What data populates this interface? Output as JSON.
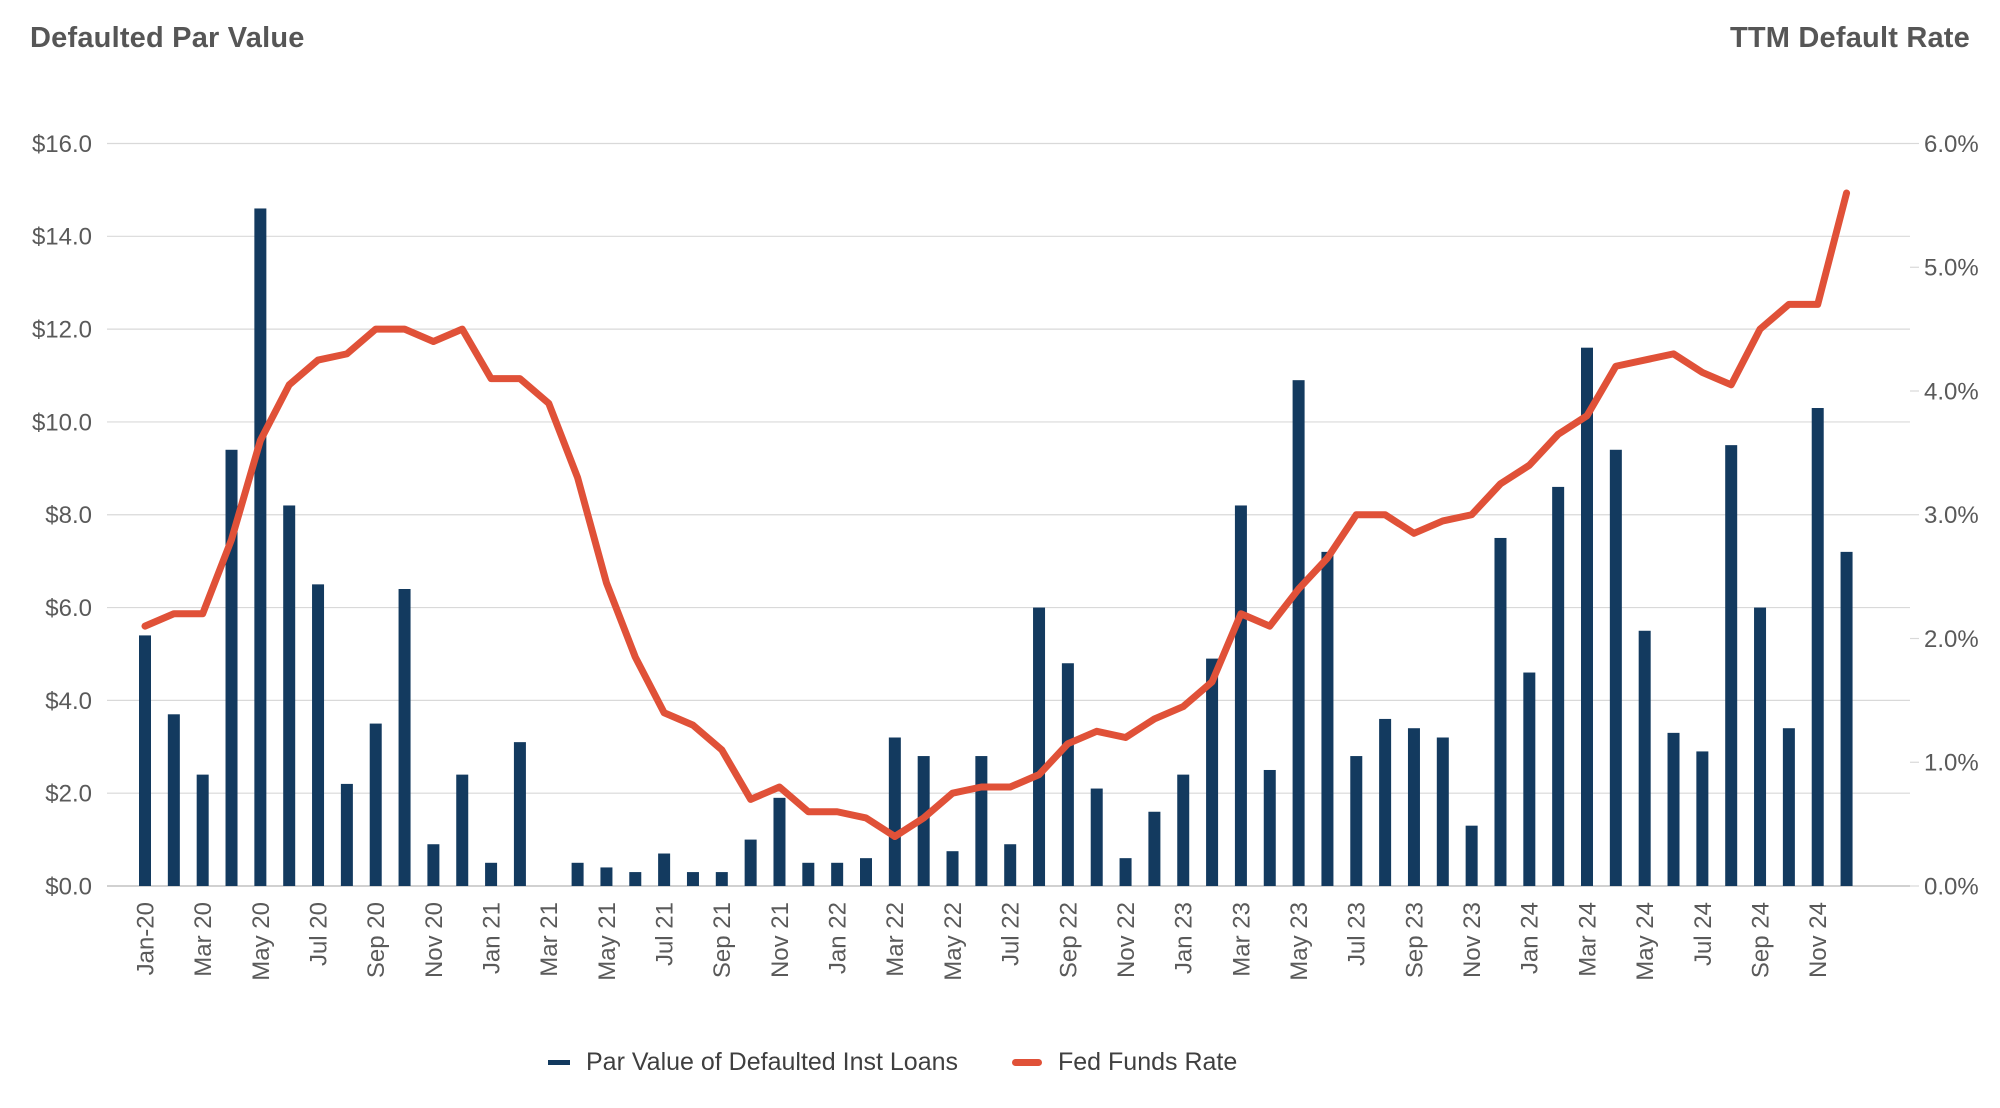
{
  "header": {
    "left_title": "Defaulted Par Value",
    "right_title": "TTM Default Rate"
  },
  "legend": {
    "bar_series_label": "Par Value of Defaulted Inst Loans",
    "line_series_label": "Fed Funds Rate"
  },
  "colors": {
    "bar": "#133a5f",
    "line": "#e05138",
    "grid": "#d9d9d9",
    "baseline": "#c2c2c2",
    "axis_text": "#5a5a5a",
    "title_text": "#565656",
    "legend_text": "#3f3f3f"
  },
  "chart_data": {
    "type": "bar",
    "subtype": "dual-axis bar + line, monthly time series",
    "title": "Defaulted Par Value / TTM Default Rate",
    "xlabel": "",
    "ylabel_left": "Defaulted Par Value ($)",
    "ylabel_right": "TTM Default Rate (%)",
    "grid": true,
    "legend_position": "bottom",
    "months": [
      "Jan-20",
      "Feb-20",
      "Mar-20",
      "Apr-20",
      "May-20",
      "Jun-20",
      "Jul-20",
      "Aug-20",
      "Sep-20",
      "Oct-20",
      "Nov-20",
      "Dec-20",
      "Jan-21",
      "Feb-21",
      "Mar-21",
      "Apr-21",
      "May-21",
      "Jun-21",
      "Jul-21",
      "Aug-21",
      "Sep-21",
      "Oct-21",
      "Nov-21",
      "Dec-21",
      "Jan-22",
      "Feb-22",
      "Mar-22",
      "Apr-22",
      "May-22",
      "Jun-22",
      "Jul-22",
      "Aug-22",
      "Sep-22",
      "Oct-22",
      "Nov-22",
      "Dec-22",
      "Jan-23",
      "Feb-23",
      "Mar-23",
      "Apr-23",
      "May-23",
      "Jun-23",
      "Jul-23",
      "Aug-23",
      "Sep-23",
      "Oct-23",
      "Nov-23",
      "Dec-23",
      "Jan-24",
      "Feb-24",
      "Mar-24",
      "Apr-24",
      "May-24",
      "Jun-24",
      "Jul-24",
      "Aug-24",
      "Sep-24",
      "Oct-24",
      "Nov-24",
      "Dec-24"
    ],
    "x_tick_labels": [
      "Jan-20",
      "Mar 20",
      "May 20",
      "Jul 20",
      "Sep 20",
      "Nov 20",
      "Jan 21",
      "Mar 21",
      "May 21",
      "Jul 21",
      "Sep 21",
      "Nov 21",
      "Jan 22",
      "Mar 22",
      "May 22",
      "Jul 22",
      "Sep 22",
      "Nov 22",
      "Jan 23",
      "Mar 23",
      "May 23",
      "Jul 23",
      "Sep 23",
      "Nov 23",
      "Jan 24",
      "Mar 24",
      "May 24",
      "Jul 24",
      "Sep 24",
      "Nov 24"
    ],
    "series": [
      {
        "name": "Par Value of Defaulted Inst Loans",
        "type": "bar",
        "axis": "left",
        "unit": "$B",
        "values": [
          5.4,
          3.7,
          2.4,
          9.4,
          14.6,
          8.2,
          6.5,
          2.2,
          3.5,
          6.4,
          0.9,
          2.4,
          0.5,
          3.1,
          0.0,
          0.5,
          0.4,
          0.3,
          0.7,
          0.3,
          0.3,
          1.0,
          1.9,
          0.5,
          0.5,
          0.6,
          3.2,
          2.8,
          0.75,
          2.8,
          0.9,
          6.0,
          4.8,
          2.1,
          0.6,
          1.6,
          2.4,
          4.9,
          8.2,
          2.5,
          10.9,
          7.2,
          2.8,
          3.6,
          3.4,
          3.2,
          1.3,
          7.5,
          4.6,
          8.6,
          11.6,
          9.4,
          5.5,
          3.3,
          2.9,
          9.5,
          6.0,
          3.4,
          10.3,
          7.2
        ]
      },
      {
        "name": "Fed Funds Rate",
        "type": "line",
        "axis": "right",
        "unit": "%",
        "values": [
          2.1,
          2.2,
          2.2,
          2.8,
          3.6,
          4.05,
          4.25,
          4.3,
          4.5,
          4.5,
          4.4,
          4.5,
          4.1,
          4.1,
          3.9,
          3.3,
          2.45,
          1.85,
          1.4,
          1.3,
          1.1,
          0.7,
          0.8,
          0.6,
          0.6,
          0.55,
          0.4,
          0.55,
          0.75,
          0.8,
          0.8,
          0.9,
          1.15,
          1.25,
          1.2,
          1.35,
          1.45,
          1.65,
          2.2,
          2.1,
          2.4,
          2.65,
          3.0,
          3.0,
          2.85,
          2.95,
          3.0,
          3.25,
          3.4,
          3.65,
          3.8,
          4.2,
          4.25,
          4.3,
          4.15,
          4.05,
          4.5,
          4.7,
          4.7,
          5.6
        ]
      }
    ],
    "left_axis": {
      "tick_labels": [
        "$16.0",
        "$14.0",
        "$12.0",
        "$10.0",
        "$8.0",
        "$6.0",
        "$4.0",
        "$2.0",
        "$0.0"
      ],
      "range": [
        0,
        16
      ]
    },
    "right_axis": {
      "tick_labels": [
        "6.0%",
        "5.0%",
        "4.0%",
        "3.0%",
        "2.0%",
        "1.0%",
        "0.0%"
      ],
      "range": [
        0,
        6
      ]
    }
  }
}
